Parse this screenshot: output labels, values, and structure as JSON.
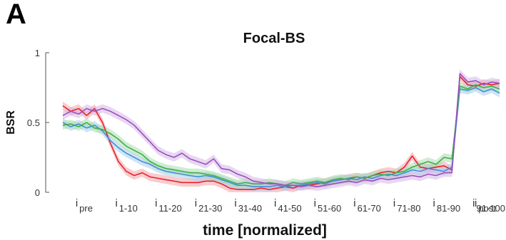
{
  "panel_label": "A",
  "chart_data": {
    "type": "line",
    "title": "Focal-BS",
    "xlabel": "time [normalized]",
    "ylabel": "BSR",
    "ylim": [
      0,
      1
    ],
    "yticks": [
      0,
      0.5,
      1
    ],
    "ytick_labels": [
      "0",
      "0.5",
      "1"
    ],
    "xlim": [
      0,
      110
    ],
    "xtick_positions": [
      5,
      15,
      25,
      35,
      45,
      55,
      65,
      75,
      85,
      95,
      105,
      115
    ],
    "xticks": [
      {
        "main": "i",
        "sub": "pre"
      },
      {
        "main": "i",
        "sub": "1-10"
      },
      {
        "main": "i",
        "sub": "11-20"
      },
      {
        "main": "i",
        "sub": "21-30"
      },
      {
        "main": "i",
        "sub": "31-40"
      },
      {
        "main": "i",
        "sub": "41-50"
      },
      {
        "main": "i",
        "sub": "51-60"
      },
      {
        "main": "i",
        "sub": "61-70"
      },
      {
        "main": "i",
        "sub": "71-80"
      },
      {
        "main": "i",
        "sub": "81-90"
      },
      {
        "main": "i",
        "sub": "91-100"
      },
      {
        "main": "i",
        "sub": "post"
      }
    ],
    "grid": false,
    "legend": "none",
    "series": [
      {
        "color": "#e8212b",
        "band_color": "#f4a3a6",
        "x": [
          0,
          2,
          4,
          6,
          8,
          10,
          12,
          14,
          16,
          18,
          20,
          22,
          24,
          26,
          28,
          30,
          32,
          34,
          36,
          38,
          40,
          42,
          44,
          46,
          48,
          50,
          52,
          54,
          56,
          58,
          60,
          62,
          64,
          66,
          68,
          70,
          72,
          74,
          76,
          78,
          80,
          82,
          84,
          86,
          88,
          90,
          92,
          94,
          96,
          98,
          100,
          102,
          104,
          106,
          108,
          110
        ],
        "y": [
          0.62,
          0.58,
          0.6,
          0.55,
          0.6,
          0.5,
          0.35,
          0.22,
          0.15,
          0.12,
          0.14,
          0.11,
          0.1,
          0.09,
          0.08,
          0.07,
          0.07,
          0.07,
          0.08,
          0.08,
          0.06,
          0.03,
          0.02,
          0.02,
          0.02,
          0.03,
          0.02,
          0.03,
          0.04,
          0.03,
          0.05,
          0.05,
          0.06,
          0.07,
          0.08,
          0.09,
          0.1,
          0.11,
          0.1,
          0.12,
          0.14,
          0.15,
          0.14,
          0.18,
          0.26,
          0.18,
          0.17,
          0.18,
          0.19,
          0.16,
          0.83,
          0.77,
          0.76,
          0.78,
          0.77,
          0.78
        ]
      },
      {
        "color": "#3f8fd8",
        "band_color": "#a9cdee",
        "x": [
          0,
          2,
          4,
          6,
          8,
          10,
          12,
          14,
          16,
          18,
          20,
          22,
          24,
          26,
          28,
          30,
          32,
          34,
          36,
          38,
          40,
          42,
          44,
          46,
          48,
          50,
          52,
          54,
          56,
          58,
          60,
          62,
          64,
          66,
          68,
          70,
          72,
          74,
          76,
          78,
          80,
          82,
          84,
          86,
          88,
          90,
          92,
          94,
          96,
          98,
          100,
          102,
          104,
          106,
          108,
          110
        ],
        "y": [
          0.5,
          0.47,
          0.49,
          0.46,
          0.48,
          0.44,
          0.37,
          0.32,
          0.28,
          0.25,
          0.22,
          0.2,
          0.17,
          0.15,
          0.14,
          0.13,
          0.12,
          0.11,
          0.12,
          0.11,
          0.09,
          0.07,
          0.05,
          0.05,
          0.04,
          0.04,
          0.04,
          0.05,
          0.04,
          0.05,
          0.05,
          0.06,
          0.07,
          0.06,
          0.08,
          0.09,
          0.1,
          0.09,
          0.11,
          0.1,
          0.12,
          0.13,
          0.12,
          0.14,
          0.16,
          0.15,
          0.17,
          0.16,
          0.15,
          0.18,
          0.74,
          0.73,
          0.75,
          0.72,
          0.74,
          0.71
        ]
      },
      {
        "color": "#3fae4a",
        "band_color": "#a9dcae",
        "x": [
          0,
          2,
          4,
          6,
          8,
          10,
          12,
          14,
          16,
          18,
          20,
          22,
          24,
          26,
          28,
          30,
          32,
          34,
          36,
          38,
          40,
          42,
          44,
          46,
          48,
          50,
          52,
          54,
          56,
          58,
          60,
          62,
          64,
          66,
          68,
          70,
          72,
          74,
          76,
          78,
          80,
          82,
          84,
          86,
          88,
          90,
          92,
          94,
          96,
          98,
          100,
          102,
          104,
          106,
          108,
          110
        ],
        "y": [
          0.48,
          0.49,
          0.47,
          0.5,
          0.46,
          0.45,
          0.42,
          0.38,
          0.33,
          0.3,
          0.27,
          0.22,
          0.19,
          0.17,
          0.16,
          0.15,
          0.14,
          0.14,
          0.13,
          0.12,
          0.1,
          0.08,
          0.06,
          0.07,
          0.06,
          0.06,
          0.07,
          0.06,
          0.05,
          0.07,
          0.06,
          0.07,
          0.08,
          0.07,
          0.09,
          0.1,
          0.09,
          0.11,
          0.1,
          0.12,
          0.13,
          0.12,
          0.14,
          0.15,
          0.18,
          0.2,
          0.22,
          0.2,
          0.25,
          0.24,
          0.76,
          0.74,
          0.77,
          0.75,
          0.76,
          0.74
        ]
      },
      {
        "color": "#9b4fc0",
        "band_color": "#d6b6e6",
        "x": [
          0,
          2,
          4,
          6,
          8,
          10,
          12,
          14,
          16,
          18,
          20,
          22,
          24,
          26,
          28,
          30,
          32,
          34,
          36,
          38,
          40,
          42,
          44,
          46,
          48,
          50,
          52,
          54,
          56,
          58,
          60,
          62,
          64,
          66,
          68,
          70,
          72,
          74,
          76,
          78,
          80,
          82,
          84,
          86,
          88,
          90,
          92,
          94,
          96,
          98,
          100,
          102,
          104,
          106,
          108,
          110
        ],
        "y": [
          0.55,
          0.58,
          0.56,
          0.6,
          0.58,
          0.6,
          0.58,
          0.55,
          0.52,
          0.48,
          0.42,
          0.36,
          0.3,
          0.27,
          0.25,
          0.28,
          0.24,
          0.22,
          0.2,
          0.24,
          0.17,
          0.16,
          0.13,
          0.11,
          0.08,
          0.07,
          0.06,
          0.06,
          0.05,
          0.05,
          0.04,
          0.05,
          0.04,
          0.05,
          0.06,
          0.07,
          0.08,
          0.07,
          0.09,
          0.08,
          0.1,
          0.09,
          0.1,
          0.11,
          0.12,
          0.11,
          0.13,
          0.12,
          0.14,
          0.14,
          0.85,
          0.79,
          0.8,
          0.77,
          0.79,
          0.78
        ]
      }
    ]
  }
}
